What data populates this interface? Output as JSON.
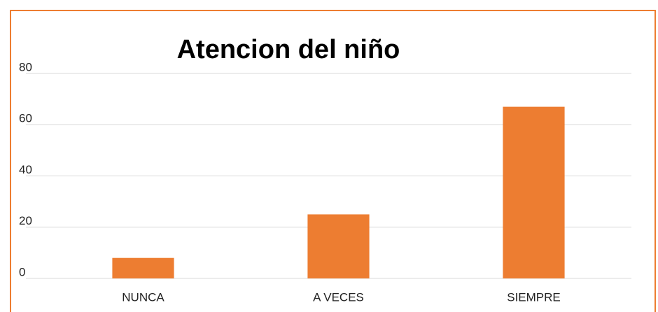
{
  "chart_data": {
    "type": "bar",
    "title": "Atencion del niño",
    "categories": [
      "NUNCA",
      "A VECES",
      "SIEMPRE"
    ],
    "values": [
      8,
      25,
      67
    ],
    "color": "#ed7d31",
    "ylim": [
      0,
      80
    ],
    "yticks": [
      0,
      20,
      40,
      60,
      80
    ],
    "grid": true
  }
}
